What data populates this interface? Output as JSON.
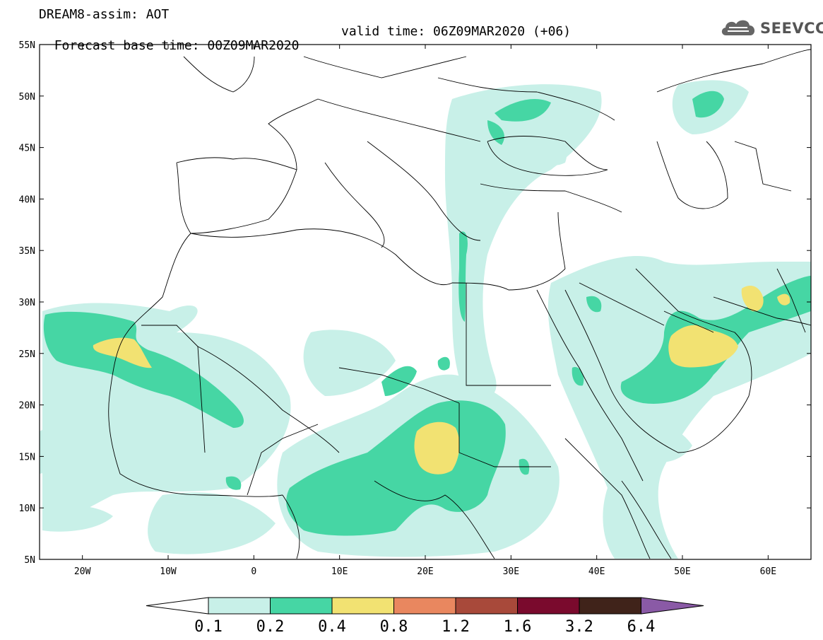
{
  "header": {
    "line1": "DREAM8-assim: AOT",
    "line2_base": "Forecast base time: 00Z09MAR2020",
    "line2_valid": "valid time: 06Z09MAR2020 (+06)"
  },
  "logo": {
    "text": "SEEVCCC",
    "icon": "cloud-icon"
  },
  "map": {
    "lon_range": [
      -25,
      65
    ],
    "lat_range": [
      5,
      55
    ],
    "lat_labels": [
      "55N",
      "50N",
      "45N",
      "40N",
      "35N",
      "30N",
      "25N",
      "20N",
      "15N",
      "10N",
      "5N"
    ],
    "lat_values": [
      55,
      50,
      45,
      40,
      35,
      30,
      25,
      20,
      15,
      10,
      5
    ],
    "lon_labels": [
      "20W",
      "10W",
      "0",
      "10E",
      "20E",
      "30E",
      "40E",
      "50E",
      "60E"
    ],
    "lon_values": [
      -20,
      -10,
      0,
      10,
      20,
      30,
      40,
      50,
      60
    ]
  },
  "colorbar": {
    "labels": [
      "0.1",
      "0.2",
      "0.4",
      "0.8",
      "1.2",
      "1.6",
      "3.2",
      "6.4"
    ],
    "colors": [
      "#ffffff",
      "#c8f0e8",
      "#46d6a4",
      "#f2e272",
      "#e9875f",
      "#a8493a",
      "#7a0a2d",
      "#40231a",
      "#8a5aa6"
    ]
  },
  "colors": {
    "level1": "#c8f0e8",
    "level2": "#46d6a4",
    "level3": "#f2e272",
    "border": "#000000"
  }
}
